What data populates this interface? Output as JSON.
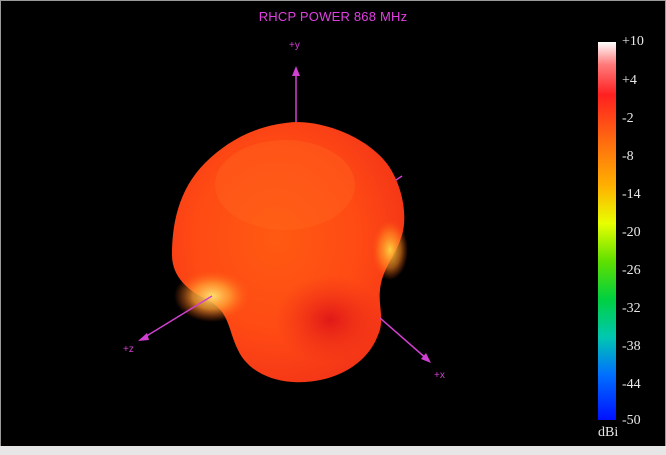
{
  "plot": {
    "title": "RHCP POWER 868  MHz",
    "axes": {
      "y": "+y",
      "z": "+z",
      "x": "+x"
    }
  },
  "legend": {
    "ticks": [
      "+10",
      "+4",
      "-2",
      "-8",
      "-14",
      "-20",
      "-26",
      "-32",
      "-38",
      "-44",
      "-50"
    ],
    "unit": "dBi",
    "colors": [
      "#ffffff",
      "#ff3030",
      "#ff5a10",
      "#ff8a00",
      "#ffd000",
      "#c8ff00",
      "#40e000",
      "#00d060",
      "#00c0d0",
      "#0060ff",
      "#0000ff"
    ]
  },
  "pattern": {
    "colors": {
      "base": "#ff4a10",
      "bright": "#ffd040",
      "dark": "#e01818"
    }
  }
}
